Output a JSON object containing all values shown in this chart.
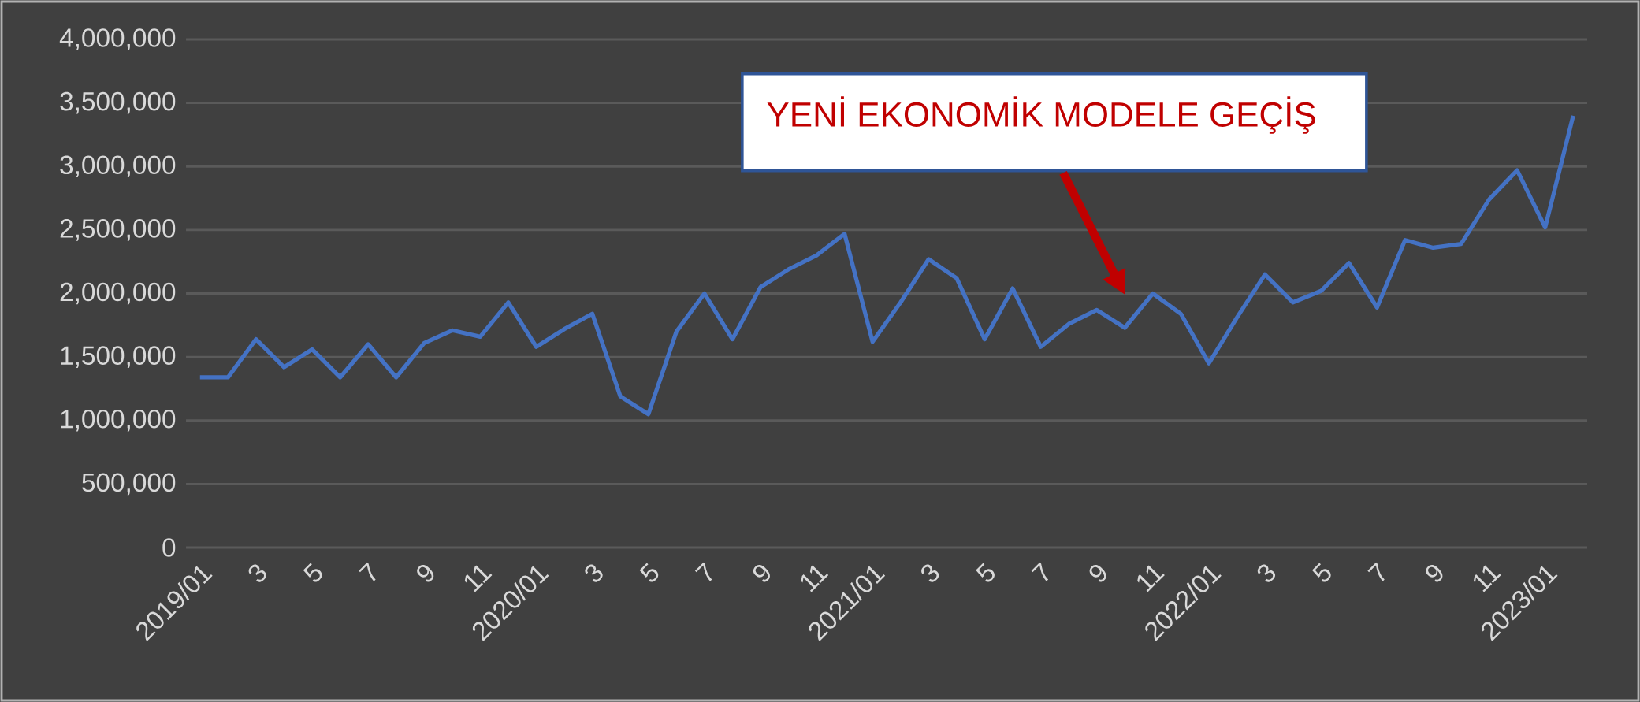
{
  "chart_data": {
    "type": "line",
    "categories": [
      "2019/01",
      null,
      "3",
      null,
      "5",
      null,
      "7",
      null,
      "9",
      null,
      "11",
      null,
      "2020/01",
      null,
      "3",
      null,
      "5",
      null,
      "7",
      null,
      "9",
      null,
      "11",
      null,
      "2021/01",
      null,
      "3",
      null,
      "5",
      null,
      "7",
      null,
      "9",
      null,
      "11",
      null,
      "2022/01",
      null,
      "3",
      null,
      "5",
      null,
      "7",
      null,
      "9",
      null,
      "11",
      null,
      "2023/01",
      null
    ],
    "series": [
      {
        "color": "#4472c4",
        "values": [
          1340000,
          1340000,
          1640000,
          1420000,
          1560000,
          1340000,
          1600000,
          1340000,
          1610000,
          1710000,
          1660000,
          1930000,
          1580000,
          1720000,
          1840000,
          1190000,
          1050000,
          1700000,
          2000000,
          1640000,
          2050000,
          2190000,
          2300000,
          2470000,
          1620000,
          1930000,
          2270000,
          2120000,
          1640000,
          2040000,
          1580000,
          1760000,
          1870000,
          1730000,
          2000000,
          1840000,
          1450000,
          1810000,
          2150000,
          1930000,
          2020000,
          2240000,
          1890000,
          2420000,
          2360000,
          2390000,
          2740000,
          2970000,
          2520000,
          3400000
        ]
      }
    ],
    "ylim": [
      0,
      4000000
    ],
    "yticks": [
      0,
      {
        "value": 500000,
        "label": "500,000"
      },
      {
        "value": 1000000,
        "label": "1,000,000"
      },
      {
        "value": 1500000,
        "label": "1,500,000"
      },
      {
        "value": 2000000,
        "label": "2,000,000"
      },
      {
        "value": 2500000,
        "label": "2,500,000"
      },
      {
        "value": 3000000,
        "label": "3,000,000"
      },
      {
        "value": 3500000,
        "label": "3,500,000"
      },
      {
        "value": 4000000,
        "label": "4,000,000"
      }
    ],
    "grid": "y",
    "marker": "none",
    "line_style": "solid",
    "annotations": [
      "YENİ EKONOMİK MODELE GEÇİŞ"
    ]
  }
}
